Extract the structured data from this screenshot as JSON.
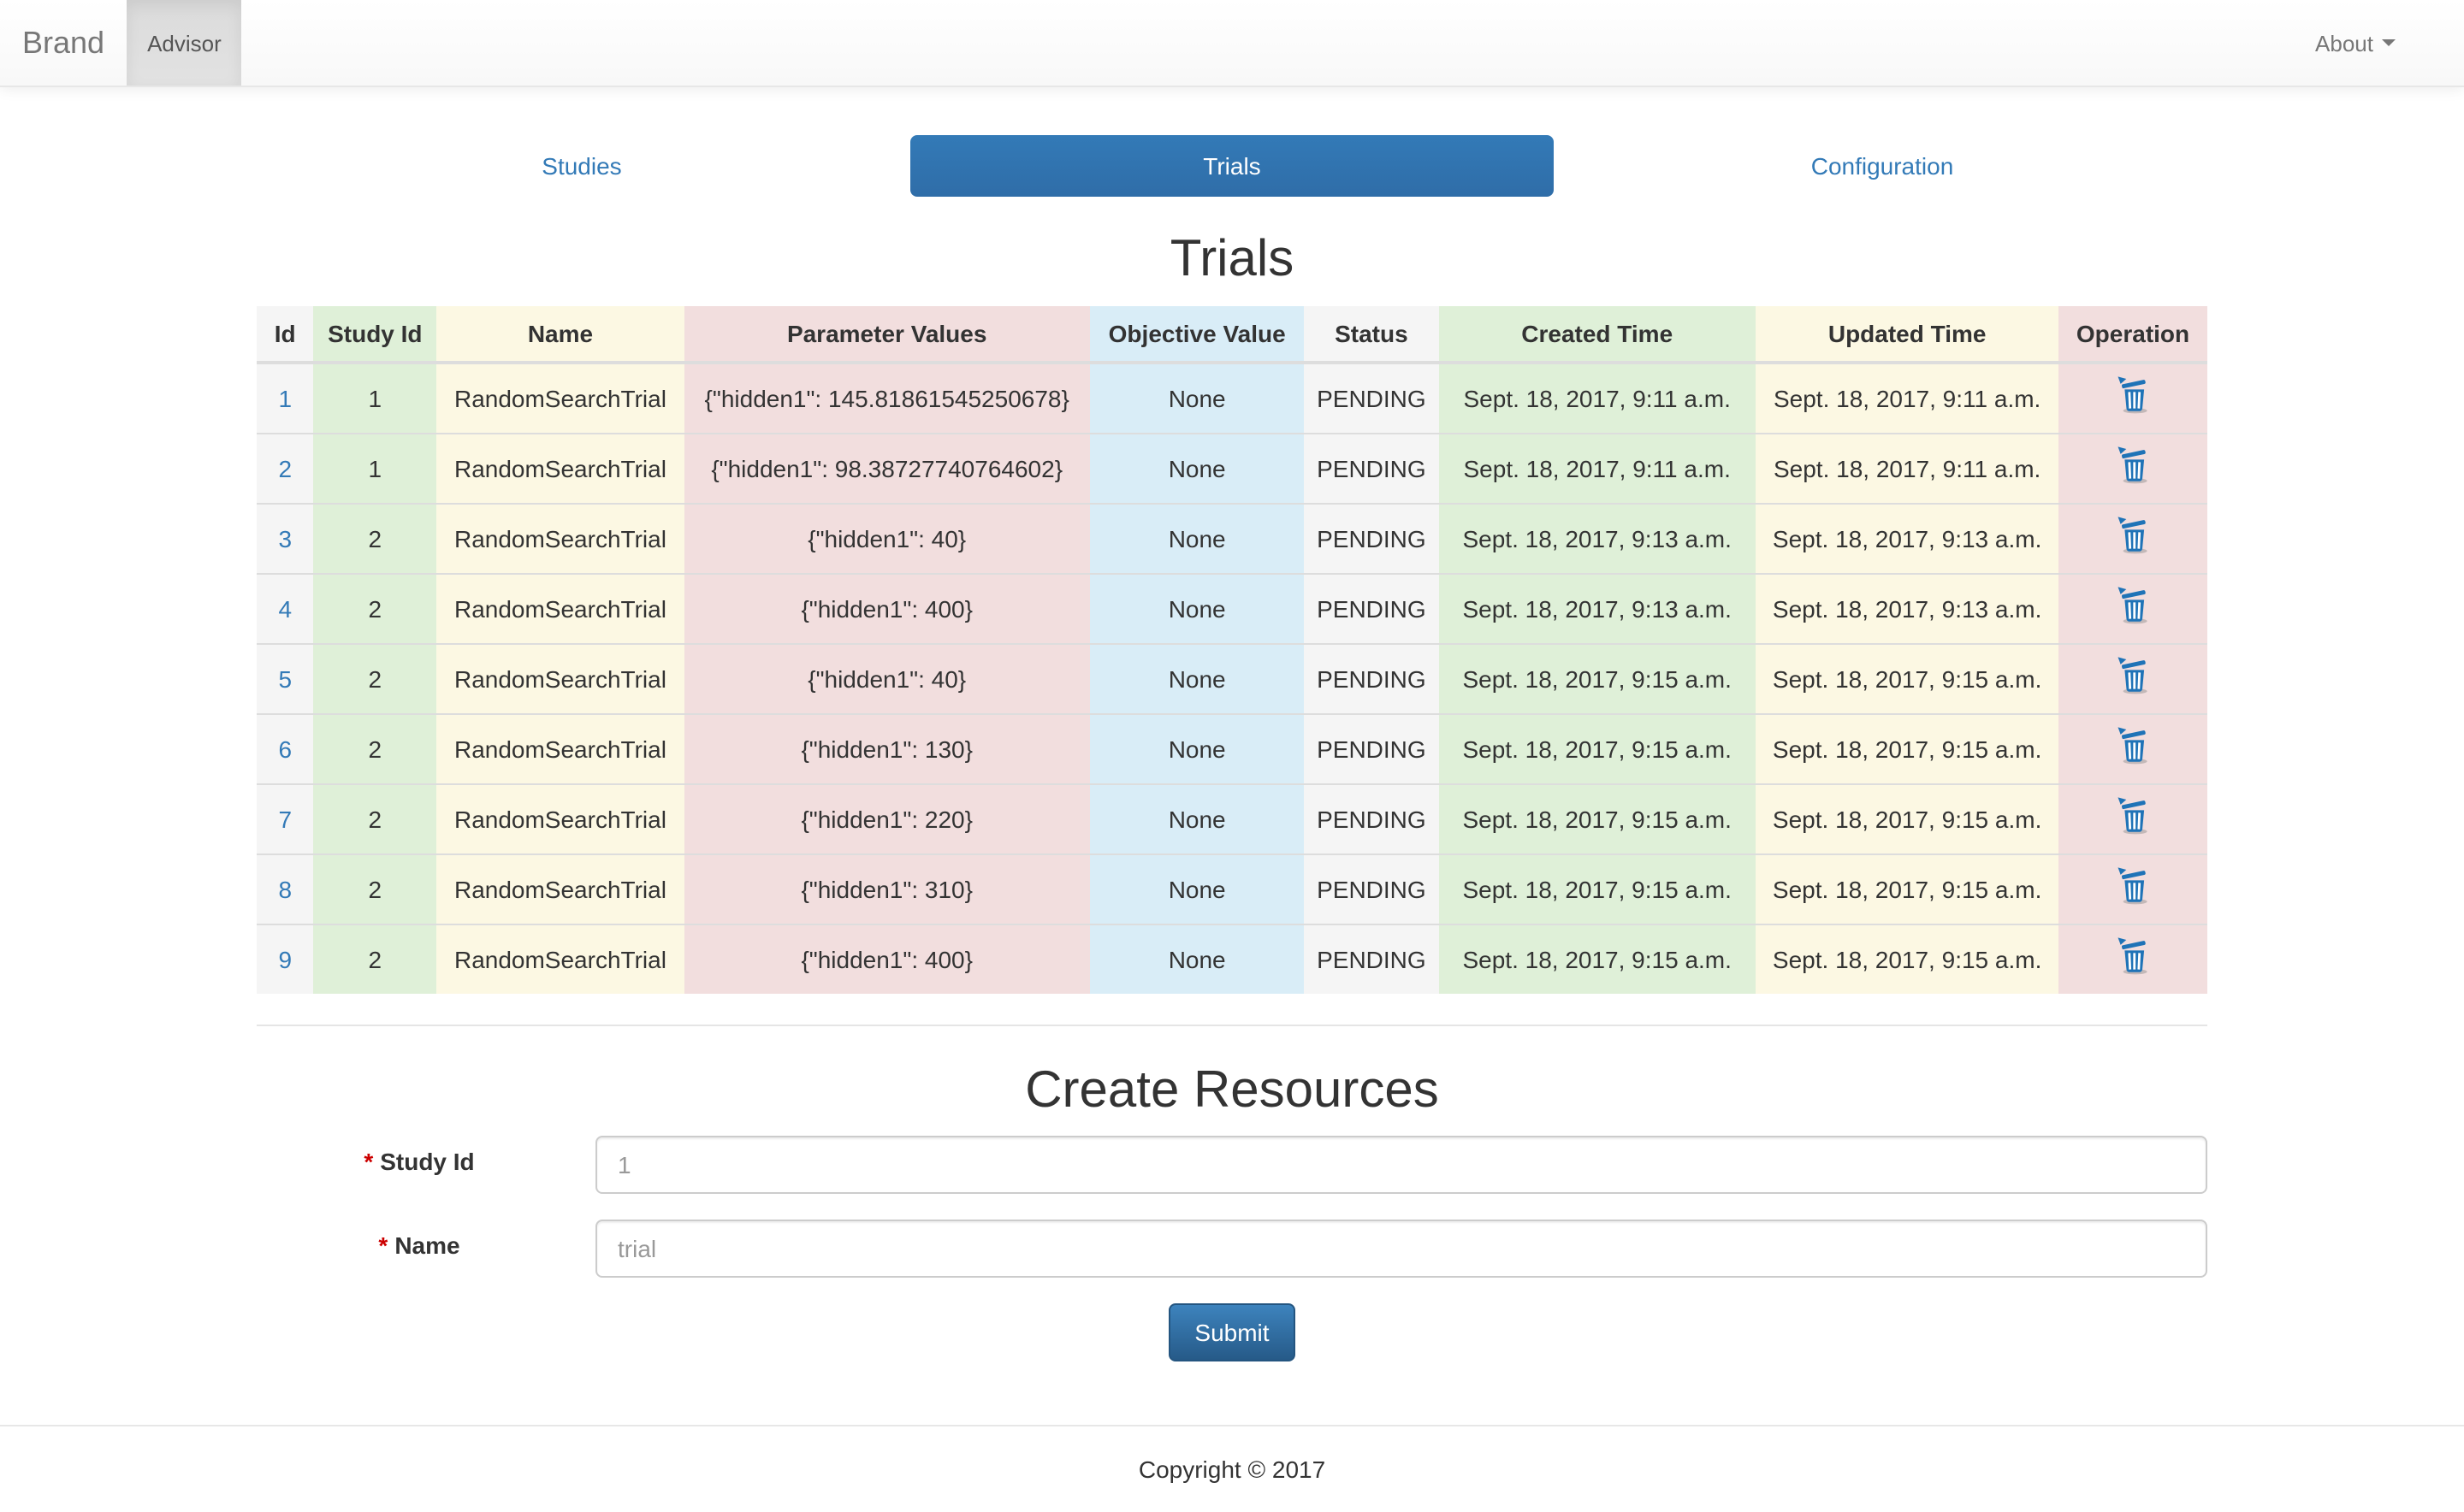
{
  "navbar": {
    "brand": "Brand",
    "app_name": "Advisor",
    "about_label": "About"
  },
  "tabs": [
    {
      "label": "Studies",
      "active": false
    },
    {
      "label": "Trials",
      "active": true
    },
    {
      "label": "Configuration",
      "active": false
    }
  ],
  "page": {
    "title": "Trials"
  },
  "table": {
    "headers": [
      "Id",
      "Study Id",
      "Name",
      "Parameter Values",
      "Objective Value",
      "Status",
      "Created Time",
      "Updated Time",
      "Operation"
    ],
    "operation_icon": "trash-icon",
    "rows": [
      {
        "id": "1",
        "study_id": "1",
        "name": "RandomSearchTrial",
        "parameter_values": "{\"hidden1\": 145.81861545250678}",
        "objective_value": "None",
        "status": "PENDING",
        "created_time": "Sept. 18, 2017, 9:11 a.m.",
        "updated_time": "Sept. 18, 2017, 9:11 a.m."
      },
      {
        "id": "2",
        "study_id": "1",
        "name": "RandomSearchTrial",
        "parameter_values": "{\"hidden1\": 98.38727740764602}",
        "objective_value": "None",
        "status": "PENDING",
        "created_time": "Sept. 18, 2017, 9:11 a.m.",
        "updated_time": "Sept. 18, 2017, 9:11 a.m."
      },
      {
        "id": "3",
        "study_id": "2",
        "name": "RandomSearchTrial",
        "parameter_values": "{\"hidden1\": 40}",
        "objective_value": "None",
        "status": "PENDING",
        "created_time": "Sept. 18, 2017, 9:13 a.m.",
        "updated_time": "Sept. 18, 2017, 9:13 a.m."
      },
      {
        "id": "4",
        "study_id": "2",
        "name": "RandomSearchTrial",
        "parameter_values": "{\"hidden1\": 400}",
        "objective_value": "None",
        "status": "PENDING",
        "created_time": "Sept. 18, 2017, 9:13 a.m.",
        "updated_time": "Sept. 18, 2017, 9:13 a.m."
      },
      {
        "id": "5",
        "study_id": "2",
        "name": "RandomSearchTrial",
        "parameter_values": "{\"hidden1\": 40}",
        "objective_value": "None",
        "status": "PENDING",
        "created_time": "Sept. 18, 2017, 9:15 a.m.",
        "updated_time": "Sept. 18, 2017, 9:15 a.m."
      },
      {
        "id": "6",
        "study_id": "2",
        "name": "RandomSearchTrial",
        "parameter_values": "{\"hidden1\": 130}",
        "objective_value": "None",
        "status": "PENDING",
        "created_time": "Sept. 18, 2017, 9:15 a.m.",
        "updated_time": "Sept. 18, 2017, 9:15 a.m."
      },
      {
        "id": "7",
        "study_id": "2",
        "name": "RandomSearchTrial",
        "parameter_values": "{\"hidden1\": 220}",
        "objective_value": "None",
        "status": "PENDING",
        "created_time": "Sept. 18, 2017, 9:15 a.m.",
        "updated_time": "Sept. 18, 2017, 9:15 a.m."
      },
      {
        "id": "8",
        "study_id": "2",
        "name": "RandomSearchTrial",
        "parameter_values": "{\"hidden1\": 310}",
        "objective_value": "None",
        "status": "PENDING",
        "created_time": "Sept. 18, 2017, 9:15 a.m.",
        "updated_time": "Sept. 18, 2017, 9:15 a.m."
      },
      {
        "id": "9",
        "study_id": "2",
        "name": "RandomSearchTrial",
        "parameter_values": "{\"hidden1\": 400}",
        "objective_value": "None",
        "status": "PENDING",
        "created_time": "Sept. 18, 2017, 9:15 a.m.",
        "updated_time": "Sept. 18, 2017, 9:15 a.m."
      }
    ]
  },
  "create": {
    "title": "Create Resources",
    "required_marker": "*",
    "study_id_label": "Study Id",
    "study_id_placeholder": "1",
    "name_label": "Name",
    "name_placeholder": "trial",
    "submit_label": "Submit"
  },
  "footer": {
    "text": "Copyright © 2017"
  },
  "colors": {
    "accent_blue": "#337ab7",
    "pill_active_bg": "#337ab7",
    "submit_gradient_top": "#3d83bd",
    "submit_gradient_bottom": "#265a88",
    "navbar_text": "#777777",
    "navbar_active_bg": "#dbdbdb",
    "table_active_bg": "#f5f5f5",
    "table_success_bg": "#dff0d8",
    "table_warning_bg": "#fcf8e3",
    "table_danger_bg": "#f2dede",
    "table_info_bg": "#d9edf7",
    "required_red": "#cc0000",
    "trash_icon_blue": "#1f73b7"
  }
}
